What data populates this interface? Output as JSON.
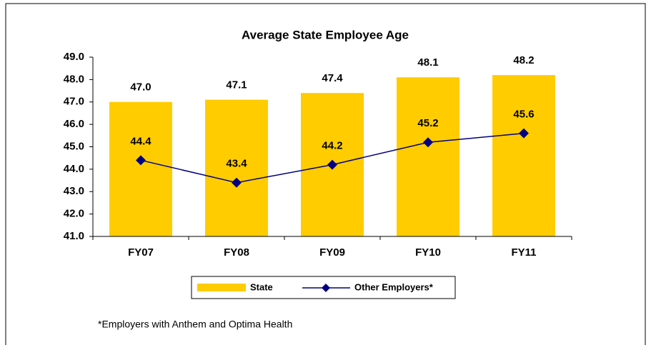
{
  "chart_data": {
    "type": "bar",
    "title": "Average State Employee Age",
    "categories": [
      "FY07",
      "FY08",
      "FY09",
      "FY10",
      "FY11"
    ],
    "series": [
      {
        "name": "State",
        "type": "bar",
        "color": "#ffcc00",
        "values": [
          47.0,
          47.1,
          47.4,
          48.1,
          48.2
        ],
        "value_labels": [
          "47.0",
          "47.1",
          "47.4",
          "48.1",
          "48.2"
        ]
      },
      {
        "name": "Other Employers*",
        "type": "line",
        "color": "#000080",
        "values": [
          44.4,
          43.4,
          44.2,
          45.2,
          45.6
        ],
        "value_labels": [
          "44.4",
          "43.4",
          "44.2",
          "45.2",
          "45.6"
        ]
      }
    ],
    "ylim": [
      41,
      49
    ],
    "yticks": [
      {
        "value": 41,
        "label": "41.0"
      },
      {
        "value": 42,
        "label": "42.0"
      },
      {
        "value": 43,
        "label": "43.0"
      },
      {
        "value": 44,
        "label": "44.0"
      },
      {
        "value": 45,
        "label": "45.0"
      },
      {
        "value": 46,
        "label": "46.0"
      },
      {
        "value": 47,
        "label": "47.0"
      },
      {
        "value": 48,
        "label": "48.0"
      },
      {
        "value": 49,
        "label": "49.0"
      }
    ],
    "legend": "bottom",
    "footnote": "*Employers with Anthem and Optima Health"
  }
}
